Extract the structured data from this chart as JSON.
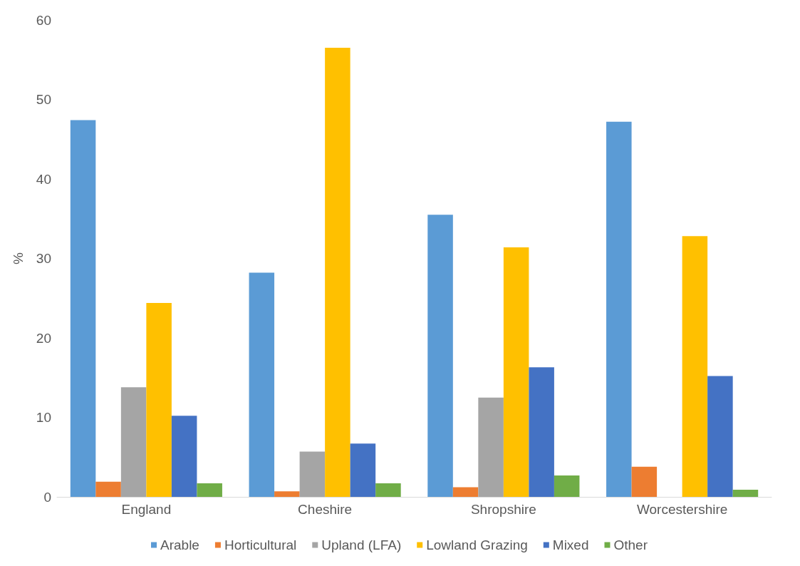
{
  "chart_data": {
    "type": "bar",
    "ylabel": "%",
    "categories": [
      "England",
      "Cheshire",
      "Shropshire",
      "Worcestershire"
    ],
    "series": [
      {
        "name": "Arable",
        "color": "#5b9bd5",
        "values": [
          47.4,
          28.2,
          35.5,
          47.2
        ]
      },
      {
        "name": "Horticultural",
        "color": "#ed7d31",
        "values": [
          1.9,
          0.7,
          1.2,
          3.8
        ]
      },
      {
        "name": "Upland (LFA)",
        "color": "#a5a5a5",
        "values": [
          13.8,
          5.7,
          12.5,
          0
        ]
      },
      {
        "name": "Lowland Grazing",
        "color": "#ffc000",
        "values": [
          24.4,
          56.5,
          31.4,
          32.8
        ]
      },
      {
        "name": "Mixed",
        "color": "#4472c4",
        "values": [
          10.2,
          6.7,
          16.3,
          15.2
        ]
      },
      {
        "name": "Other",
        "color": "#70ad47",
        "values": [
          1.7,
          1.7,
          2.7,
          0.9
        ]
      }
    ],
    "ylim": [
      0,
      60
    ],
    "yticks": [
      0,
      10,
      20,
      30,
      40,
      50,
      60
    ],
    "grid": false,
    "legend": "bottom"
  }
}
